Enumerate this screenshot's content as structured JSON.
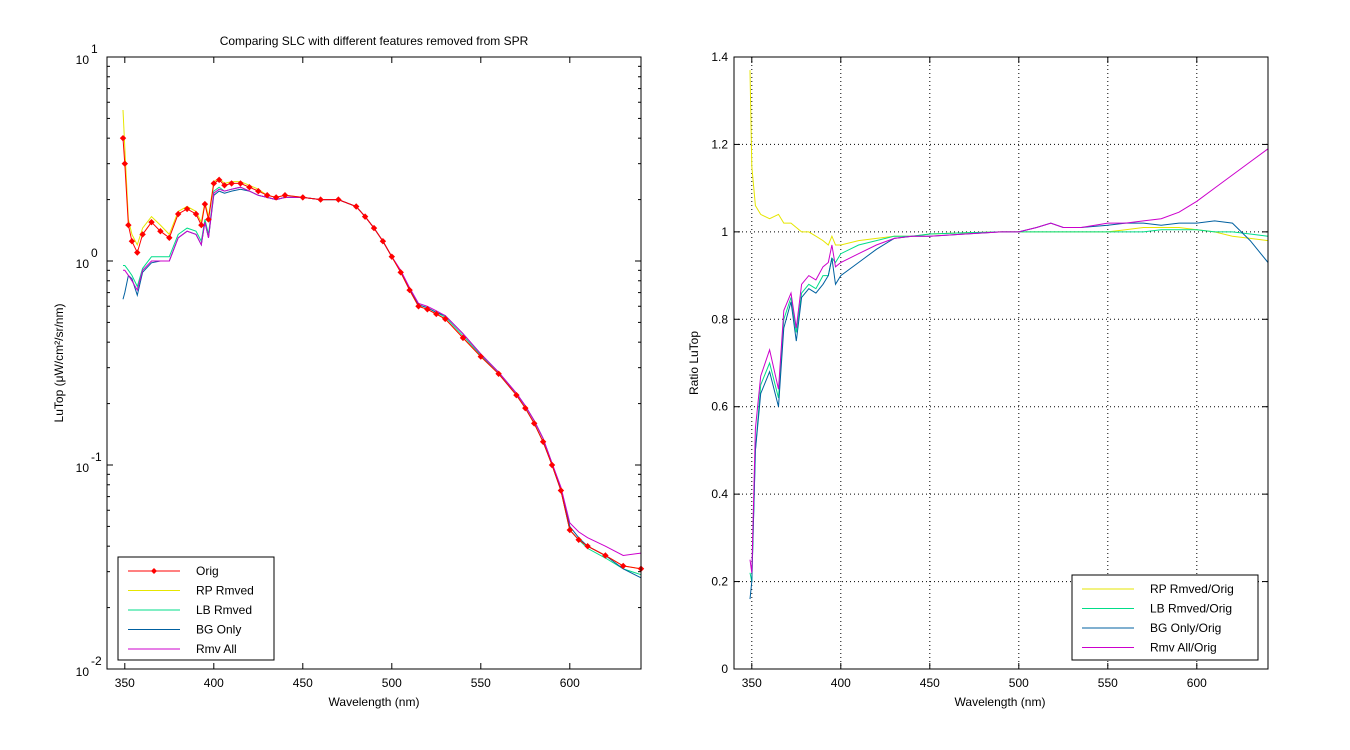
{
  "chart_data": [
    {
      "type": "line",
      "title": "Comparing SLC with different features removed from SPR",
      "xlabel": "Wavelength (nm)",
      "ylabel": "LuTop (μW/cm²/sr/nm)",
      "xlim": [
        340,
        640
      ],
      "ylim": [
        0.01,
        10
      ],
      "yscale": "log",
      "xticks": [
        350,
        400,
        450,
        500,
        550,
        600
      ],
      "yticks": [
        {
          "base": "10",
          "exp": "1",
          "value": 10
        },
        {
          "base": "10",
          "exp": "0",
          "value": 1
        },
        {
          "base": "10",
          "exp": "-1",
          "value": 0.1
        },
        {
          "base": "10",
          "exp": "-2",
          "value": 0.01
        }
      ],
      "grid": false,
      "legend_position": "bottom-left",
      "x": [
        349,
        350,
        352,
        354,
        357,
        360,
        365,
        370,
        375,
        380,
        385,
        390,
        393,
        395,
        397,
        400,
        403,
        406,
        410,
        415,
        420,
        425,
        430,
        435,
        440,
        450,
        460,
        470,
        480,
        485,
        490,
        495,
        500,
        505,
        510,
        515,
        520,
        525,
        530,
        540,
        550,
        560,
        570,
        575,
        580,
        585,
        590,
        595,
        600,
        605,
        610,
        620,
        630,
        640
      ],
      "series": [
        {
          "name": "Orig",
          "color": "#ff0000",
          "marker": "diamond",
          "values": [
            4.0,
            3.0,
            1.5,
            1.25,
            1.1,
            1.35,
            1.55,
            1.4,
            1.3,
            1.7,
            1.8,
            1.7,
            1.5,
            1.9,
            1.6,
            2.4,
            2.5,
            2.35,
            2.4,
            2.4,
            2.3,
            2.2,
            2.1,
            2.05,
            2.1,
            2.05,
            2.0,
            2.0,
            1.85,
            1.65,
            1.45,
            1.25,
            1.05,
            0.88,
            0.72,
            0.6,
            0.58,
            0.55,
            0.52,
            0.42,
            0.34,
            0.28,
            0.22,
            0.19,
            0.16,
            0.13,
            0.1,
            0.075,
            0.048,
            0.043,
            0.04,
            0.036,
            0.032,
            0.031
          ]
        },
        {
          "name": "RP Rmved",
          "color": "#e6e600",
          "values": [
            5.5,
            3.6,
            1.6,
            1.35,
            1.2,
            1.45,
            1.65,
            1.5,
            1.35,
            1.75,
            1.85,
            1.75,
            1.55,
            1.95,
            1.65,
            2.45,
            2.55,
            2.4,
            2.45,
            2.45,
            2.35,
            2.25,
            2.1,
            2.05,
            2.1,
            2.05,
            2.0,
            2.0,
            1.85,
            1.65,
            1.45,
            1.25,
            1.05,
            0.88,
            0.72,
            0.6,
            0.58,
            0.55,
            0.52,
            0.42,
            0.34,
            0.28,
            0.22,
            0.19,
            0.16,
            0.13,
            0.1,
            0.075,
            0.048,
            0.043,
            0.04,
            0.036,
            0.032,
            0.031
          ]
        },
        {
          "name": "LB Rmved",
          "color": "#00dd88",
          "values": [
            0.95,
            0.95,
            0.9,
            0.85,
            0.75,
            0.92,
            1.05,
            1.05,
            1.05,
            1.35,
            1.45,
            1.4,
            1.25,
            1.6,
            1.35,
            2.2,
            2.3,
            2.2,
            2.25,
            2.3,
            2.2,
            2.1,
            2.05,
            2.0,
            2.05,
            2.05,
            2.0,
            2.0,
            1.85,
            1.65,
            1.45,
            1.25,
            1.05,
            0.89,
            0.73,
            0.61,
            0.59,
            0.56,
            0.53,
            0.43,
            0.345,
            0.28,
            0.22,
            0.19,
            0.16,
            0.13,
            0.1,
            0.075,
            0.048,
            0.043,
            0.039,
            0.035,
            0.031,
            0.029
          ]
        },
        {
          "name": "BG Only",
          "color": "#0060a0",
          "values": [
            0.65,
            0.7,
            0.85,
            0.82,
            0.68,
            0.88,
            0.98,
            1.0,
            1.0,
            1.3,
            1.4,
            1.35,
            1.2,
            1.55,
            1.3,
            2.1,
            2.2,
            2.15,
            2.2,
            2.25,
            2.2,
            2.1,
            2.05,
            2.0,
            2.05,
            2.05,
            2.0,
            2.0,
            1.85,
            1.65,
            1.45,
            1.25,
            1.05,
            0.89,
            0.73,
            0.61,
            0.59,
            0.56,
            0.54,
            0.44,
            0.35,
            0.285,
            0.225,
            0.195,
            0.165,
            0.135,
            0.102,
            0.077,
            0.05,
            0.044,
            0.04,
            0.036,
            0.031,
            0.028
          ]
        },
        {
          "name": "Rmv All",
          "color": "#cc00cc",
          "values": [
            0.9,
            0.9,
            0.85,
            0.8,
            0.72,
            0.9,
            1.0,
            1.0,
            1.0,
            1.3,
            1.4,
            1.35,
            1.2,
            1.55,
            1.3,
            2.15,
            2.25,
            2.2,
            2.25,
            2.3,
            2.2,
            2.1,
            2.05,
            2.0,
            2.05,
            2.05,
            2.0,
            2.0,
            1.85,
            1.65,
            1.45,
            1.25,
            1.05,
            0.9,
            0.74,
            0.62,
            0.6,
            0.57,
            0.54,
            0.44,
            0.35,
            0.285,
            0.225,
            0.195,
            0.165,
            0.135,
            0.102,
            0.078,
            0.052,
            0.047,
            0.044,
            0.04,
            0.036,
            0.037
          ]
        }
      ],
      "legend": [
        "Orig",
        "RP Rmved",
        "LB Rmved",
        "BG Only",
        "Rmv All"
      ]
    },
    {
      "type": "line",
      "title": "",
      "xlabel": "Wavelength (nm)",
      "ylabel": "Ratio LuTop",
      "xlim": [
        340,
        640
      ],
      "ylim": [
        0,
        1.4
      ],
      "xticks": [
        350,
        400,
        450,
        500,
        550,
        600
      ],
      "yticks": [
        0,
        0.2,
        0.4,
        0.6,
        0.8,
        1,
        1.2,
        1.4
      ],
      "grid": true,
      "legend_position": "bottom-right",
      "x": [
        349,
        350,
        352,
        355,
        360,
        365,
        368,
        372,
        375,
        378,
        382,
        386,
        390,
        393,
        395,
        397,
        400,
        410,
        420,
        430,
        440,
        450,
        470,
        490,
        500,
        510,
        518,
        525,
        535,
        550,
        560,
        570,
        580,
        590,
        600,
        610,
        620,
        630,
        640
      ],
      "series": [
        {
          "name": "RP Rmved/Orig",
          "color": "#e6e600",
          "values": [
            1.37,
            1.15,
            1.06,
            1.04,
            1.03,
            1.04,
            1.02,
            1.02,
            1.01,
            1.0,
            1.0,
            0.99,
            0.98,
            0.97,
            0.99,
            0.97,
            0.97,
            0.98,
            0.985,
            0.99,
            0.99,
            0.995,
            0.998,
            1.0,
            1.0,
            1.0,
            1.0,
            1.0,
            1.0,
            1.0,
            1.005,
            1.01,
            1.01,
            1.01,
            1.005,
            1.0,
            0.99,
            0.985,
            0.98
          ]
        },
        {
          "name": "LB Rmved/Orig",
          "color": "#00dd88",
          "values": [
            0.22,
            0.2,
            0.5,
            0.65,
            0.7,
            0.62,
            0.8,
            0.85,
            0.77,
            0.86,
            0.88,
            0.87,
            0.9,
            0.9,
            0.94,
            0.93,
            0.95,
            0.97,
            0.98,
            0.99,
            0.99,
            0.995,
            0.998,
            1.0,
            1.0,
            1.0,
            1.0,
            1.0,
            1.0,
            1.0,
            1.0,
            1.0,
            1.005,
            1.005,
            1.005,
            1.0,
            1.0,
            0.995,
            0.99
          ]
        },
        {
          "name": "BG Only/Orig",
          "color": "#0060a0",
          "values": [
            0.16,
            0.2,
            0.5,
            0.63,
            0.68,
            0.6,
            0.78,
            0.84,
            0.75,
            0.85,
            0.87,
            0.86,
            0.88,
            0.9,
            0.94,
            0.88,
            0.9,
            0.93,
            0.96,
            0.985,
            0.99,
            0.99,
            0.995,
            1.0,
            1.0,
            1.01,
            1.02,
            1.01,
            1.01,
            1.015,
            1.02,
            1.02,
            1.015,
            1.02,
            1.02,
            1.025,
            1.02,
            0.98,
            0.93
          ]
        },
        {
          "name": "Rmv All/Orig",
          "color": "#cc00cc",
          "values": [
            0.25,
            0.22,
            0.55,
            0.67,
            0.73,
            0.64,
            0.82,
            0.86,
            0.78,
            0.88,
            0.9,
            0.89,
            0.92,
            0.93,
            0.97,
            0.92,
            0.93,
            0.95,
            0.97,
            0.985,
            0.99,
            0.99,
            0.995,
            1.0,
            1.0,
            1.01,
            1.02,
            1.01,
            1.01,
            1.02,
            1.02,
            1.025,
            1.03,
            1.045,
            1.07,
            1.1,
            1.13,
            1.16,
            1.19
          ]
        }
      ],
      "legend": [
        "RP Rmved/Orig",
        "LB Rmved/Orig",
        "BG Only/Orig",
        "Rmv All/Orig"
      ]
    }
  ]
}
